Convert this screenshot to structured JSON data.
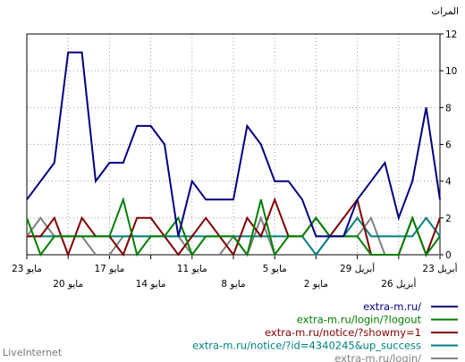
{
  "chart_data": {
    "type": "line",
    "ylabel": "المرات",
    "ylim": [
      0,
      12
    ],
    "yticks": [
      0,
      2,
      4,
      6,
      8,
      10,
      12
    ],
    "grid": true,
    "legend_position": "bottom-right",
    "x_direction": "right-to-left",
    "x_tick_labels_upper": [
      "23 مايو",
      "17 مايو",
      "11 مايو",
      "5 مايو",
      "29 أبريل",
      "23 أبريل"
    ],
    "x_tick_labels_lower": [
      "20 مايو",
      "14 مايو",
      "8 مايو",
      "2 مايو",
      "26 أبريل"
    ],
    "x": [
      "23 مايو",
      "22 مايو",
      "21 مايو",
      "20 مايو",
      "19 مايو",
      "18 مايو",
      "17 مايو",
      "16 مايو",
      "15 مايو",
      "14 مايو",
      "13 مايو",
      "12 مايو",
      "11 مايو",
      "10 مايو",
      "9 مايو",
      "8 مايو",
      "7 مايو",
      "6 مايو",
      "5 مايو",
      "4 مايو",
      "3 مايو",
      "2 مايو",
      "1 مايو",
      "30 أبريل",
      "29 أبريل",
      "28 أبريل",
      "27 أبريل",
      "26 أبريل",
      "25 أبريل",
      "24 أبريل",
      "23 أبريل"
    ],
    "series": [
      {
        "name": "extra-m.ru/",
        "color": "#000080",
        "values": [
          3,
          4,
          5,
          11,
          11,
          4,
          5,
          5,
          7,
          7,
          6,
          1,
          4,
          3,
          3,
          3,
          7,
          6,
          4,
          4,
          3,
          1,
          1,
          1,
          3,
          4,
          5,
          2,
          4,
          8,
          3
        ]
      },
      {
        "name": "extra-m.ru/login/?logout",
        "color": "#008000",
        "values": [
          2,
          0,
          1,
          1,
          1,
          1,
          1,
          3,
          0,
          1,
          1,
          2,
          0,
          1,
          1,
          1,
          0,
          3,
          0,
          1,
          1,
          2,
          1,
          1,
          1,
          0,
          0,
          0,
          2,
          0,
          1
        ]
      },
      {
        "name": "extra-m.ru/notice/?showmy=1",
        "color": "#800000",
        "values": [
          1,
          1,
          2,
          0,
          2,
          1,
          1,
          0,
          2,
          2,
          1,
          0,
          1,
          2,
          1,
          0,
          2,
          1,
          3,
          1,
          1,
          2,
          1,
          2,
          3,
          0,
          0,
          0,
          2,
          0,
          2
        ]
      },
      {
        "name": "extra-m.ru/notice/?id=4340245&up_success",
        "color": "#008080",
        "values": [
          1,
          1,
          1,
          1,
          1,
          1,
          1,
          1,
          1,
          1,
          1,
          1,
          1,
          1,
          1,
          1,
          1,
          1,
          1,
          1,
          1,
          0,
          1,
          1,
          2,
          1,
          1,
          1,
          1,
          2,
          1
        ]
      },
      {
        "name": "extra-m.ru/login/",
        "color": "#808080",
        "values": [
          1,
          2,
          1,
          1,
          1,
          0,
          0,
          1,
          1,
          1,
          1,
          1,
          0,
          0,
          0,
          1,
          0,
          2,
          0,
          0,
          0,
          0,
          1,
          1,
          1,
          2,
          0,
          0,
          0,
          0,
          0
        ]
      }
    ]
  },
  "brand": "LiveInternet"
}
